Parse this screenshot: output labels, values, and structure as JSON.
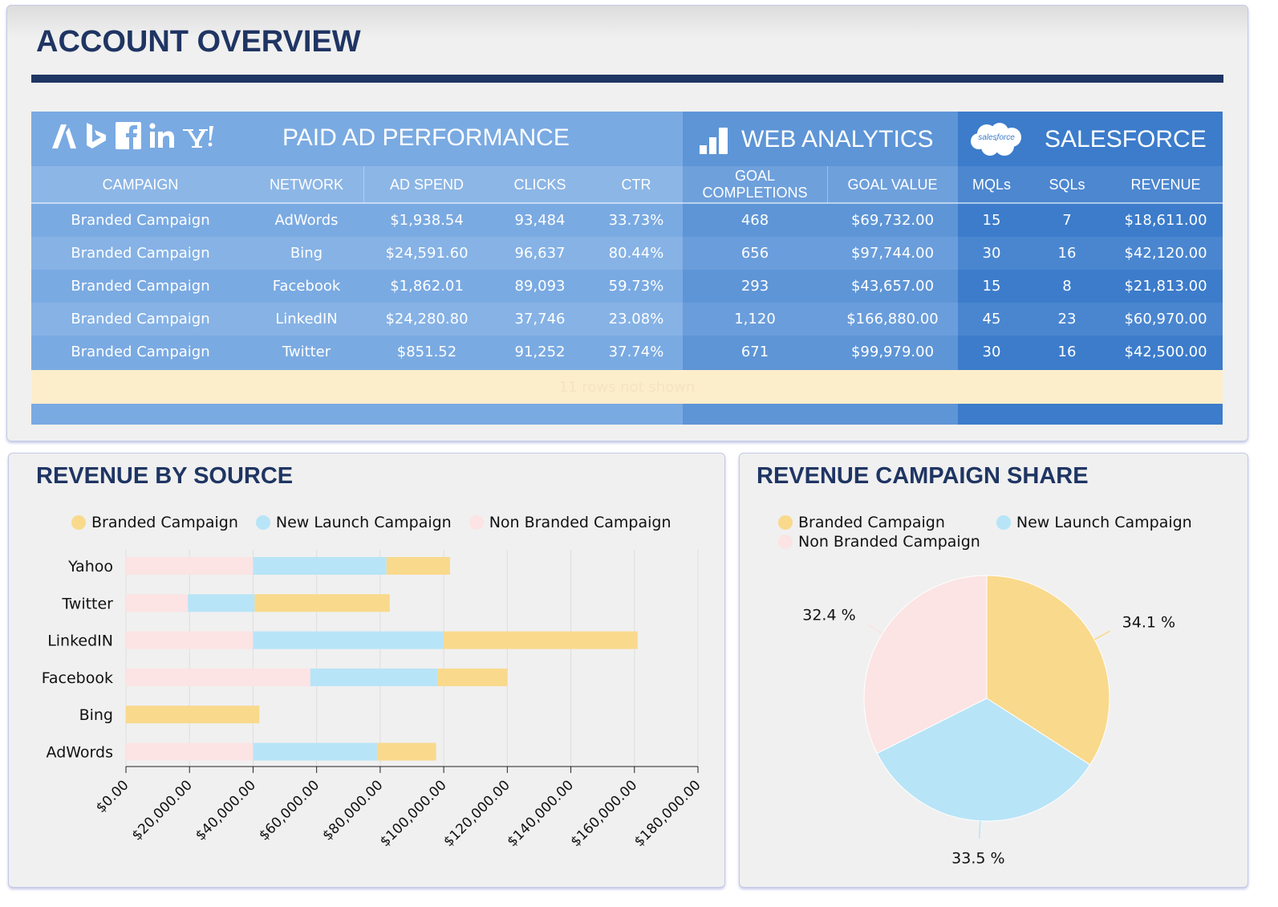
{
  "account": {
    "title": "ACCOUNT OVERVIEW"
  },
  "table": {
    "groups": {
      "paid": "PAID AD PERFORMANCE",
      "web": "WEB ANALYTICS",
      "salesforce": "SALESFORCE",
      "salesforce_logo_text": "salesforce"
    },
    "headers": {
      "campaign": "CAMPAIGN",
      "network": "NETWORK",
      "ad_spend": "AD SPEND",
      "clicks": "CLICKS",
      "ctr": "CTR",
      "goal_completions": "GOAL COMPLETIONS",
      "goal_value": "GOAL VALUE",
      "mqls": "MQLs",
      "sqls": "SQLs",
      "revenue": "REVENUE"
    },
    "rows": [
      {
        "campaign": "Branded Campaign",
        "network": "AdWords",
        "ad_spend": "$1,938.54",
        "clicks": "93,484",
        "ctr": "33.73%",
        "goal_completions": "468",
        "goal_value": "$69,732.00",
        "mqls": "15",
        "sqls": "7",
        "revenue": "$18,611.00"
      },
      {
        "campaign": "Branded Campaign",
        "network": "Bing",
        "ad_spend": "$24,591.60",
        "clicks": "96,637",
        "ctr": "80.44%",
        "goal_completions": "656",
        "goal_value": "$97,744.00",
        "mqls": "30",
        "sqls": "16",
        "revenue": "$42,120.00"
      },
      {
        "campaign": "Branded Campaign",
        "network": "Facebook",
        "ad_spend": "$1,862.01",
        "clicks": "89,093",
        "ctr": "59.73%",
        "goal_completions": "293",
        "goal_value": "$43,657.00",
        "mqls": "15",
        "sqls": "8",
        "revenue": "$21,813.00"
      },
      {
        "campaign": "Branded Campaign",
        "network": "LinkedIN",
        "ad_spend": "$24,280.80",
        "clicks": "37,746",
        "ctr": "23.08%",
        "goal_completions": "1,120",
        "goal_value": "$166,880.00",
        "mqls": "45",
        "sqls": "23",
        "revenue": "$60,970.00"
      },
      {
        "campaign": "Branded Campaign",
        "network": "Twitter",
        "ad_spend": "$851.52",
        "clicks": "91,252",
        "ctr": "37.74%",
        "goal_completions": "671",
        "goal_value": "$99,979.00",
        "mqls": "30",
        "sqls": "16",
        "revenue": "$42,500.00"
      }
    ],
    "more_rows": "11 rows not shown"
  },
  "colors": {
    "branded": "#f9d98c",
    "new_launch": "#b8e4f7",
    "non_branded": "#fbe4e3",
    "title": "#1f3563"
  },
  "revenue_by_source": {
    "title": "REVENUE BY SOURCE",
    "chart_data": {
      "type": "bar",
      "orientation": "horizontal",
      "stacked": true,
      "categories": [
        "Yahoo",
        "Twitter",
        "LinkedIN",
        "Facebook",
        "Bing",
        "AdWords"
      ],
      "series": [
        {
          "name": "Non Branded Campaign",
          "values": [
            40000,
            19500,
            40000,
            58000,
            0,
            40000
          ]
        },
        {
          "name": "New Launch Campaign",
          "values": [
            42000,
            21000,
            60000,
            40000,
            0,
            39000
          ]
        },
        {
          "name": "Branded Campaign",
          "values": [
            20000,
            42500,
            61000,
            22000,
            42000,
            18600
          ]
        }
      ],
      "legend": [
        "Branded Campaign",
        "New Launch Campaign",
        "Non Branded Campaign"
      ],
      "xlim": [
        0,
        180000
      ],
      "xticks": [
        "$0.00",
        "$20,000.00",
        "$40,000.00",
        "$60,000.00",
        "$80,000.00",
        "$100,000.00",
        "$120,000.00",
        "$140,000.00",
        "$160,000.00",
        "$180,000.00"
      ],
      "legend_position": "top",
      "grid": true
    }
  },
  "revenue_campaign_share": {
    "title": "REVENUE CAMPAIGN SHARE",
    "chart_data": {
      "type": "pie",
      "slices": [
        {
          "name": "Branded Campaign",
          "value": 34.1,
          "label": "34.1 %"
        },
        {
          "name": "New Launch Campaign",
          "value": 33.5,
          "label": "33.5 %"
        },
        {
          "name": "Non Branded Campaign",
          "value": 32.4,
          "label": "32.4 %"
        }
      ],
      "legend": [
        "Branded Campaign",
        "New Launch Campaign",
        "Non Branded Campaign"
      ],
      "legend_position": "top"
    }
  }
}
